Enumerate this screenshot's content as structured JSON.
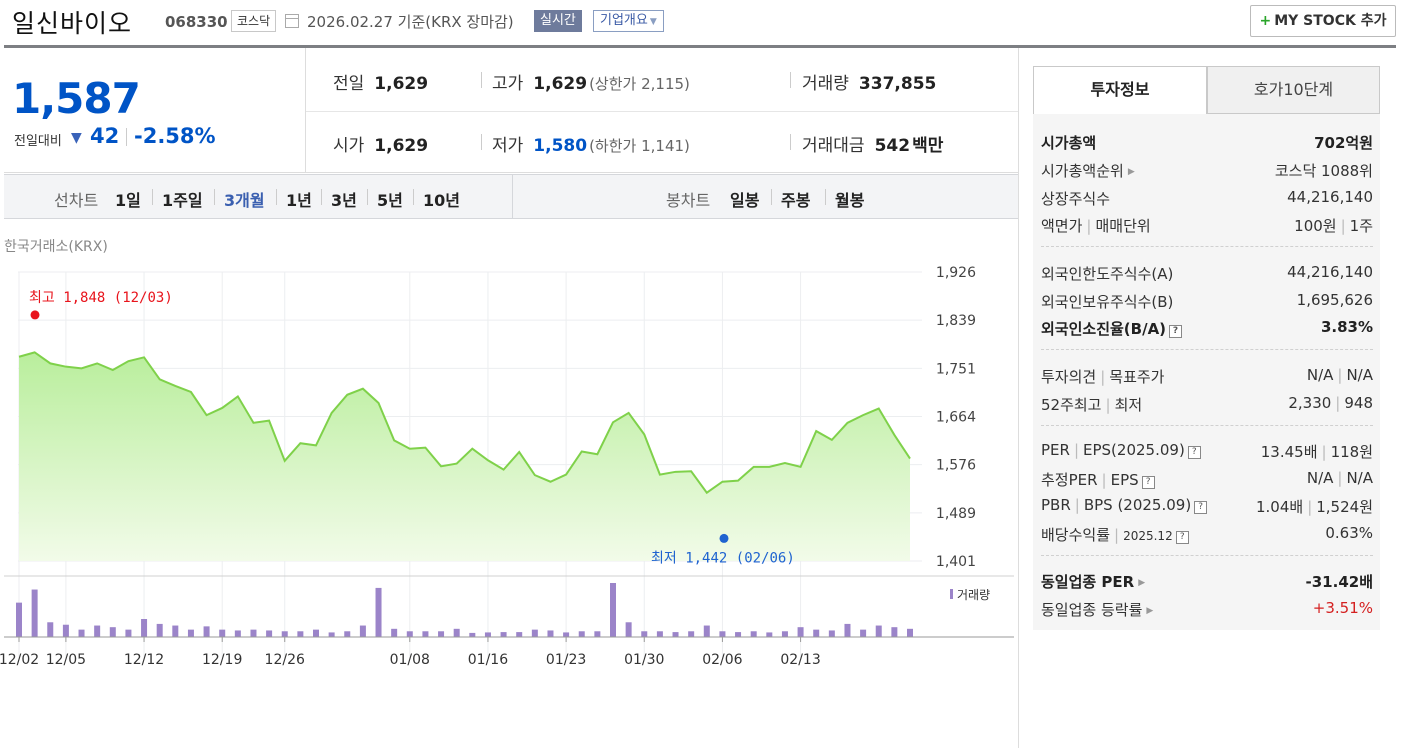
{
  "header": {
    "stock_name": "일신바이오",
    "stock_code": "068330",
    "market": "코스닥",
    "date_text": "2026.02.27  기준(KRX 장마감)",
    "realtime": "실시간",
    "company_info": "기업개요",
    "mystock_plus": "+",
    "mystock_label": "MY STOCK 추가"
  },
  "price": {
    "current": "1,587",
    "change_label": "전일대비",
    "change_arrow": "▼",
    "change_amount": "42",
    "change_percent": "-2.58%"
  },
  "quotes": {
    "prev_label": "전일",
    "prev": "1,629",
    "high_label": "고가",
    "high": "1,629",
    "upper_limit": "(상한가 2,115)",
    "volume_label": "거래량",
    "volume": "337,855",
    "open_label": "시가",
    "open": "1,629",
    "low_label": "저가",
    "low": "1,580",
    "lower_limit": "(하한가 1,141)",
    "amount_label": "거래대금",
    "amount": "542",
    "amount_unit": "백만"
  },
  "period_tabs": {
    "line_label": "선차트",
    "line": [
      "1일",
      "1주일",
      "3개월",
      "1년",
      "3년",
      "5년",
      "10년"
    ],
    "active": "3개월",
    "candle_label": "봉차트",
    "candle": [
      "일봉",
      "주봉",
      "월봉"
    ]
  },
  "chart_source": "한국거래소(KRX)",
  "chart_data": {
    "type": "area",
    "y_ticks": [
      "1,926",
      "1,839",
      "1,751",
      "1,664",
      "1,576",
      "1,489",
      "1,401"
    ],
    "ylim": [
      1401,
      1926
    ],
    "x_tick_labels": [
      "12/02",
      "12/05",
      "12/12",
      "12/19",
      "12/26",
      "01/08",
      "01/16",
      "01/23",
      "01/30",
      "02/06",
      "02/13"
    ],
    "high_label": "최고 1,848 (12/03)",
    "low_label": "최저 1,442 (02/06)",
    "high_value": 1848,
    "low_value": 1442,
    "close": [
      1772,
      1780,
      1760,
      1754,
      1751,
      1760,
      1748,
      1764,
      1771,
      1731,
      1719,
      1708,
      1666,
      1679,
      1700,
      1652,
      1656,
      1583,
      1615,
      1611,
      1670,
      1703,
      1714,
      1688,
      1620,
      1605,
      1607,
      1573,
      1578,
      1605,
      1584,
      1567,
      1599,
      1557,
      1545,
      1558,
      1600,
      1595,
      1653,
      1670,
      1631,
      1558,
      1563,
      1564,
      1525,
      1545,
      1547,
      1572,
      1572,
      1579,
      1572,
      1637,
      1621,
      1652,
      1666,
      1678,
      1630,
      1587
    ],
    "volume_legend": "거래량",
    "volume": [
      210,
      290,
      90,
      75,
      45,
      70,
      60,
      45,
      110,
      80,
      70,
      45,
      65,
      45,
      40,
      45,
      40,
      35,
      35,
      45,
      28,
      35,
      70,
      300,
      50,
      35,
      35,
      35,
      50,
      25,
      28,
      30,
      30,
      45,
      40,
      28,
      35,
      35,
      330,
      90,
      35,
      35,
      30,
      35,
      70,
      35,
      30,
      35,
      28,
      35,
      60,
      45,
      40,
      80,
      45,
      70,
      60,
      50
    ]
  },
  "right_panel": {
    "tab_invest": "투자정보",
    "tab_quote": "호가10단계",
    "mkt_cap_label": "시가총액",
    "mkt_cap": "702억원",
    "mkt_rank_label": "시가총액순위",
    "mkt_rank": "코스닥 1088위",
    "shares_label": "상장주식수",
    "shares": "44,216,140",
    "face_label": "액면가",
    "unit_label": "매매단위",
    "face": "100원",
    "unit": "1주",
    "foreign_limit_label": "외국인한도주식수(A)",
    "foreign_limit": "44,216,140",
    "foreign_hold_label": "외국인보유주식수(B)",
    "foreign_hold": "1,695,626",
    "foreign_rate_label": "외국인소진율(B/A)",
    "foreign_rate": "3.83%",
    "opinion_label": "투자의견",
    "target_label": "목표주가",
    "opinion": "N/A",
    "target": "N/A",
    "w52_label": "52주최고",
    "w52_low_label": "최저",
    "w52_high": "2,330",
    "w52_low": "948",
    "per_label": "PER",
    "eps_label": "EPS(2025.09)",
    "per": "13.45배",
    "eps": "118원",
    "est_per_label": "추정PER",
    "est_eps_label": "EPS",
    "est_per": "N/A",
    "est_eps": "N/A",
    "pbr_label": "PBR",
    "bps_label": "BPS (2025.09)",
    "pbr": "1.04배",
    "bps": "1,524원",
    "div_label": "배당수익률",
    "div_period": "2025.12",
    "div": "0.63%",
    "sector_per_label": "동일업종 PER",
    "sector_per": "-31.42배",
    "sector_rate_label": "동일업종 등락률",
    "sector_rate": "+3.51%",
    "help_mark": "?",
    "pipe": "|"
  }
}
